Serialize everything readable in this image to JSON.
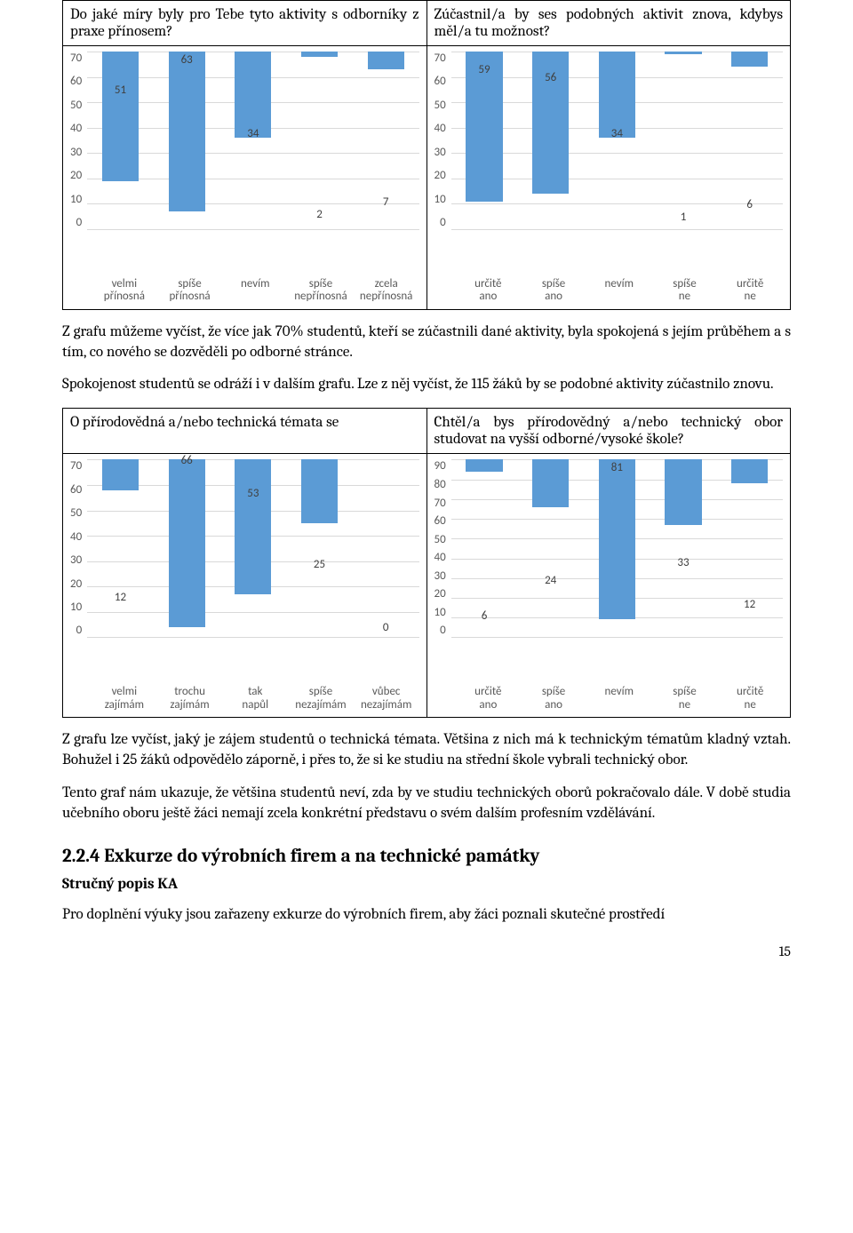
{
  "bar_color": "#5b9bd5",
  "grid_color": "#d9d9d9",
  "axis_text_color": "#595959",
  "q1": {
    "left_title": "Do jaké míry byly pro Tebe tyto aktivity s odborníky z praxe přínosem?",
    "right_title": "Zúčastnil/a by ses podobných aktivit znova, kdybys měl/a tu možnost?",
    "left_chart": {
      "ymax": 70,
      "ystep": 10,
      "categories": [
        "velmi přínosná",
        "spíše přínosná",
        "nevím",
        "spíše nepřínosná",
        "zcela nepřínosná"
      ],
      "values": [
        51,
        63,
        34,
        2,
        7
      ]
    },
    "right_chart": {
      "ymax": 70,
      "ystep": 10,
      "categories": [
        "určitě ano",
        "spíše ano",
        "nevím",
        "spíše ne",
        "určitě ne"
      ],
      "values": [
        59,
        56,
        34,
        1,
        6
      ]
    }
  },
  "para1": "Z grafu můžeme vyčíst, že více jak 70% studentů, kteří se zúčastnili dané aktivity, byla spokojená s jejím průběhem a s tím, co nového se dozvěděli po odborné stránce.",
  "para2": "Spokojenost studentů se odráží i v dalším grafu. Lze z něj vyčíst, že 115 žáků by se podobné aktivity zúčastnilo znovu.",
  "q2": {
    "left_title": "O přírodovědná a/nebo technická témata se",
    "right_title": "Chtěl/a bys přírodovědný a/nebo technický obor studovat na vyšší odborné/vysoké škole?",
    "left_chart": {
      "ymax": 70,
      "ystep": 10,
      "categories": [
        "velmi zajímám",
        "trochu zajímám",
        "tak napůl",
        "spíše nezajímám",
        "vůbec nezajímám"
      ],
      "values": [
        12,
        66,
        53,
        25,
        0
      ]
    },
    "right_chart": {
      "ymax": 90,
      "ystep": 10,
      "categories": [
        "určitě ano",
        "spíše ano",
        "nevím",
        "spíše ne",
        "určitě ne"
      ],
      "values": [
        6,
        24,
        81,
        33,
        12
      ]
    }
  },
  "para3": "Z grafu lze vyčíst, jaký je zájem studentů o technická témata. Většina z nich má k technickým tématům kladný vztah. Bohužel i 25 žáků odpovědělo záporně, i přes to, že si ke studiu na střední škole vybrali technický obor.",
  "para4": "Tento graf nám ukazuje, že většina studentů neví, zda by ve studiu technických oborů pokračovalo dále. V době studia učebního oboru ještě žáci nemají zcela konkrétní představu o svém dalším profesním vzdělávání.",
  "section_heading": "2.2.4  Exkurze do výrobních firem a na technické památky",
  "sub_heading": "Stručný popis KA",
  "para5": "Pro doplnění výuky jsou zařazeny exkurze do výrobních firem, aby žáci poznali skutečné prostředí",
  "page_number": "15"
}
